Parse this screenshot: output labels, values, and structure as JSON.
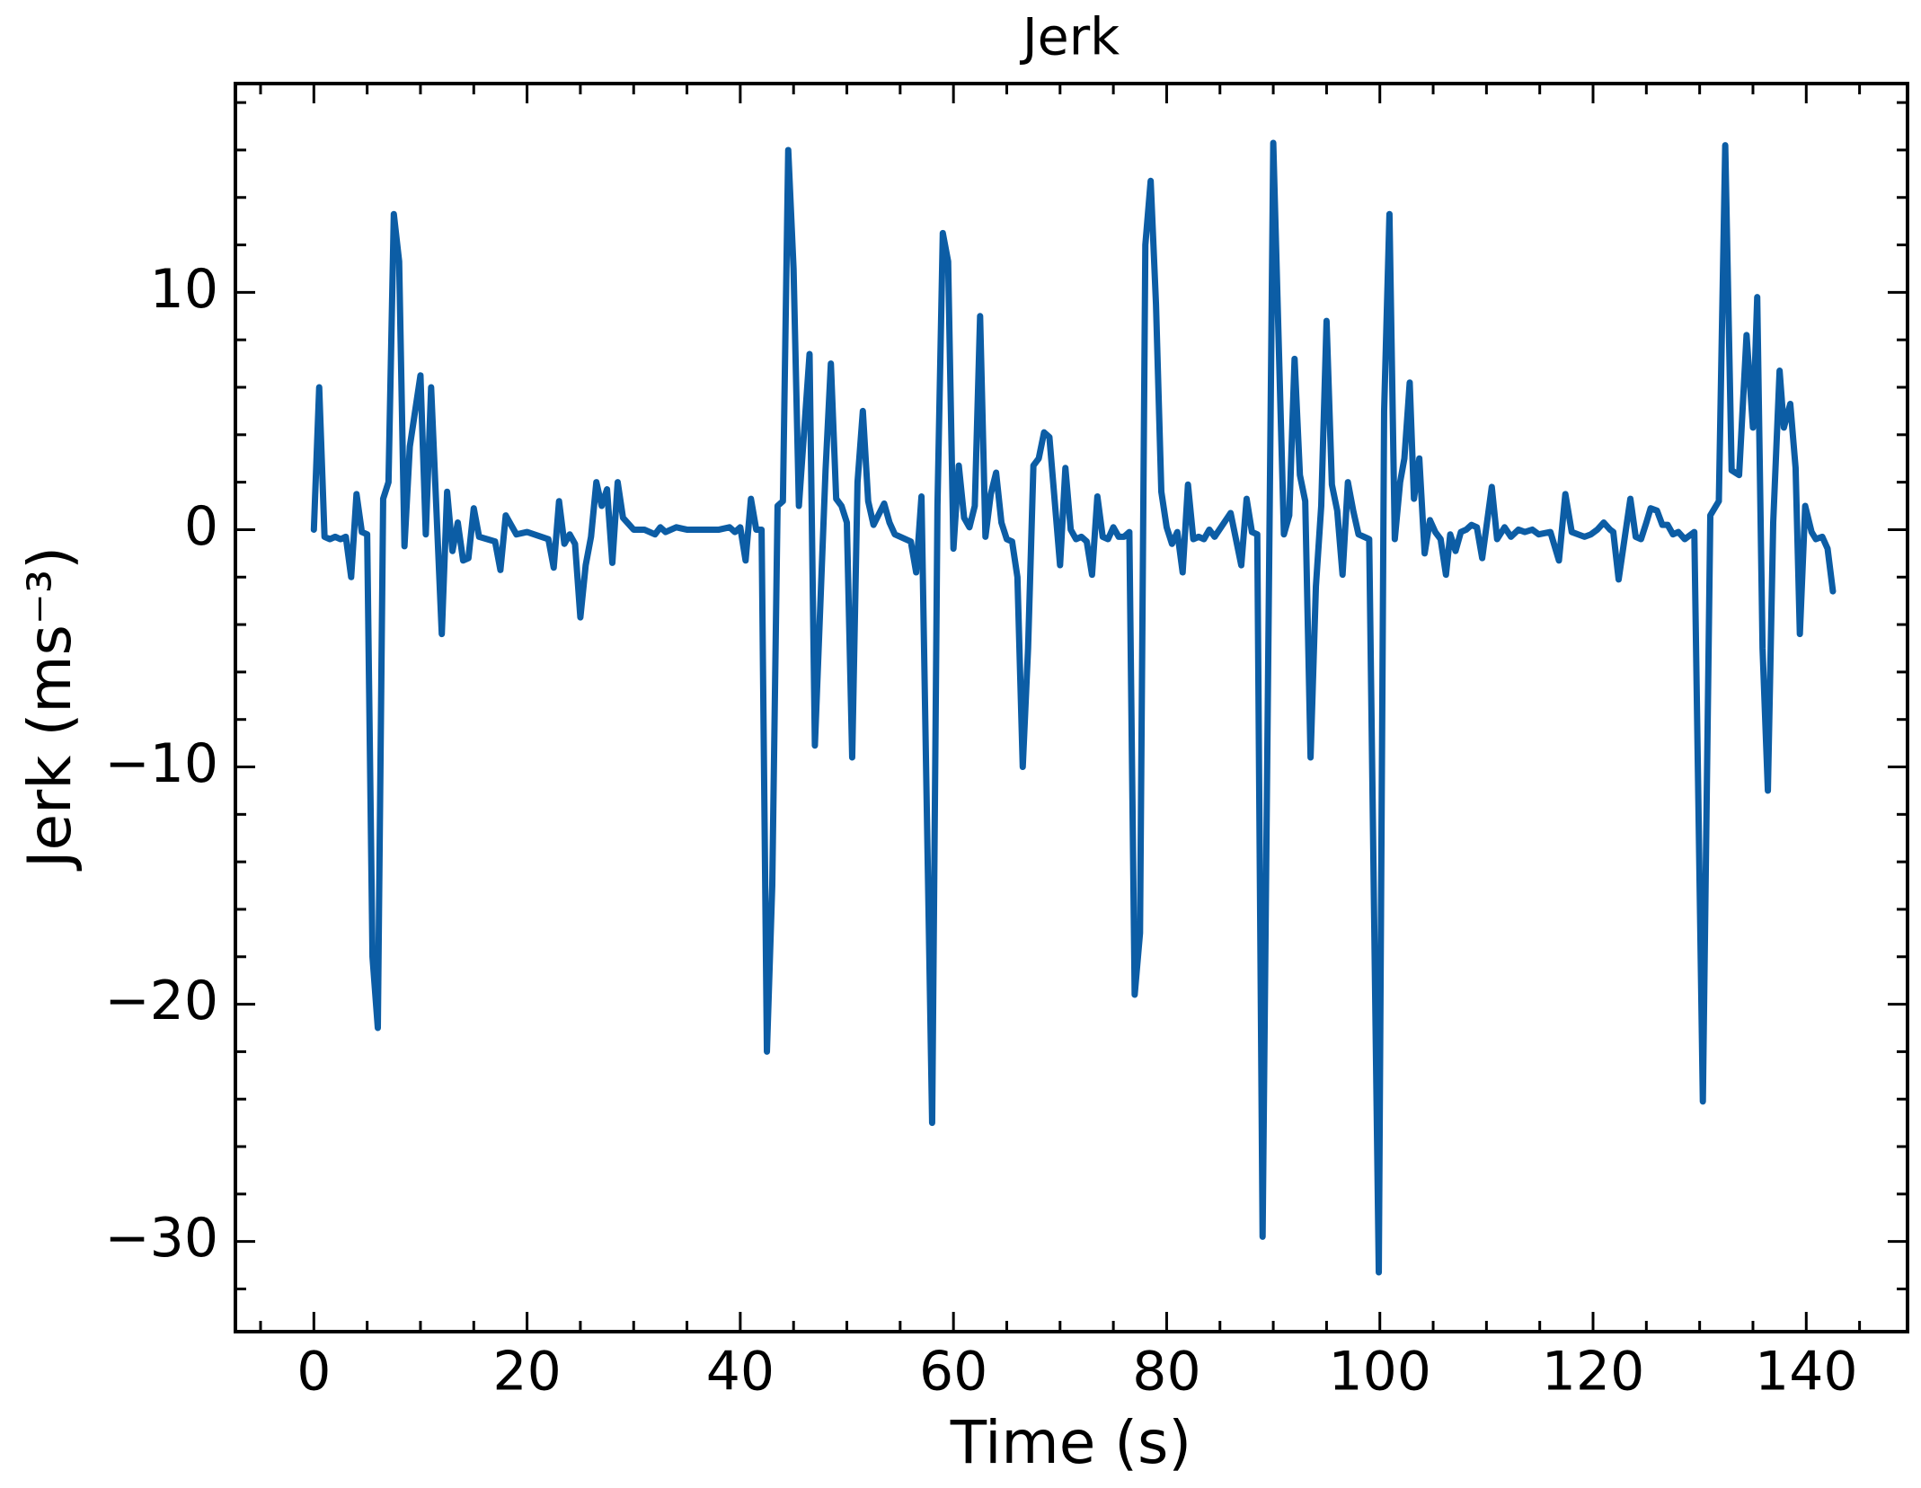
{
  "chart_data": {
    "type": "line",
    "title": "Jerk",
    "x_label": "Time (s)",
    "y_label": "Jerk (ms⁻³)",
    "series": [
      {
        "name": "Jerk",
        "color": "#0c5da5",
        "x": [
          0,
          0.5,
          1,
          1.5,
          2,
          2.5,
          3,
          3.5,
          4,
          4.5,
          5,
          5.5,
          6,
          6.5,
          7,
          7.5,
          8,
          8.5,
          9,
          10,
          10.5,
          11,
          12,
          12.5,
          13,
          13.5,
          14,
          14.5,
          15,
          15.5,
          17,
          17.5,
          18,
          19,
          20,
          22,
          22.5,
          23,
          23.5,
          24,
          24.5,
          25,
          25.5,
          26,
          26.5,
          27,
          27.5,
          28,
          28.5,
          29,
          30,
          31,
          32,
          32.5,
          33,
          34,
          35,
          36,
          37,
          38,
          39,
          39.5,
          40,
          40.5,
          41,
          41.5,
          42,
          42.5,
          43,
          43.5,
          44,
          44.5,
          45,
          45.5,
          46.5,
          47,
          48,
          48.5,
          49,
          49.5,
          50,
          50.5,
          51,
          51.5,
          52,
          52.5,
          53.5,
          54,
          54.5,
          56,
          56.5,
          57,
          58,
          58.5,
          59,
          59.5,
          60,
          60.5,
          61,
          61.5,
          62,
          62.5,
          63,
          63.5,
          64,
          64.5,
          65,
          65.5,
          66,
          66.5,
          67,
          67.5,
          68,
          68.5,
          69,
          70,
          70.5,
          71,
          71.5,
          72,
          72.5,
          73,
          73.5,
          74,
          74.5,
          75,
          75.5,
          76,
          76.5,
          77,
          77.5,
          78,
          78.5,
          79,
          79.5,
          80,
          80.5,
          81,
          81.5,
          82,
          82.5,
          83,
          83.5,
          84,
          84.5,
          86,
          87,
          87.5,
          88,
          88.5,
          89,
          90,
          91,
          91.5,
          92,
          92.5,
          93,
          93.5,
          94,
          94.5,
          95,
          95.5,
          96,
          96.5,
          97,
          97.5,
          98,
          99,
          99.9,
          100.4,
          100.9,
          101.4,
          101.9,
          102.3,
          102.8,
          103.2,
          103.7,
          104.2,
          104.7,
          105.2,
          105.7,
          106.2,
          106.6,
          107.1,
          107.6,
          108.1,
          108.6,
          109.1,
          109.6,
          110.5,
          111,
          111.7,
          112.3,
          113,
          113.6,
          114.3,
          114.9,
          116,
          116.8,
          117.4,
          118,
          118.6,
          119.2,
          119.8,
          120.4,
          121,
          121.6,
          121.9,
          122.4,
          123.5,
          124,
          124.5,
          125,
          125.4,
          126,
          126.5,
          127,
          127.5,
          128,
          128.6,
          129.5,
          130.3,
          131,
          131.8,
          132.4,
          133,
          133.7,
          134.4,
          135,
          135.4,
          135.9,
          136.4,
          136.9,
          137.5,
          137.9,
          138.5,
          139,
          139.4,
          139.9,
          140.5,
          140.9,
          141.5,
          142,
          142.5
        ],
        "values": [
          0,
          6,
          -0.3,
          -0.4,
          -0.3,
          -0.4,
          -0.3,
          -2,
          1.5,
          -0.1,
          -0.2,
          -18,
          -21,
          1.3,
          2,
          13.3,
          11.3,
          -0.7,
          3.5,
          6.5,
          -0.2,
          6,
          -4.4,
          1.6,
          -0.9,
          0.3,
          -1.3,
          -1.2,
          0.9,
          -0.3,
          -0.5,
          -1.7,
          0.6,
          -0.2,
          -0.1,
          -0.4,
          -1.6,
          1.2,
          -0.6,
          -0.2,
          -0.6,
          -3.7,
          -1.5,
          -0.3,
          2,
          1,
          1.7,
          -1.4,
          2,
          0.5,
          0,
          0,
          -0.2,
          0.1,
          -0.1,
          0.1,
          0,
          0,
          0,
          0,
          0.1,
          -0.1,
          0.1,
          -1.3,
          1.3,
          0,
          0,
          -22,
          -15,
          1,
          1.2,
          16,
          11,
          1,
          7.4,
          -9.1,
          2.5,
          7,
          1.3,
          1,
          0.3,
          -9.6,
          2,
          5,
          1.2,
          0.2,
          1.1,
          0.3,
          -0.2,
          -0.5,
          -1.8,
          1.4,
          -25,
          1,
          12.5,
          11.3,
          -0.8,
          2.7,
          0.5,
          0.1,
          1,
          9,
          -0.3,
          1.5,
          2.4,
          0.3,
          -0.4,
          -0.5,
          -2,
          -10,
          -5,
          2.7,
          3,
          4.1,
          3.9,
          -1.5,
          2.6,
          0,
          -0.4,
          -0.3,
          -0.5,
          -1.9,
          1.4,
          -0.3,
          -0.4,
          0.1,
          -0.3,
          -0.3,
          -0.1,
          -19.6,
          -17,
          12,
          14.7,
          9.5,
          1.6,
          0.1,
          -0.6,
          -0.1,
          -1.8,
          1.9,
          -0.4,
          -0.3,
          -0.4,
          0,
          -0.3,
          0.7,
          -1.5,
          1.3,
          -0.1,
          -0.2,
          -29.8,
          16.3,
          -0.2,
          0.6,
          7.2,
          2.3,
          1.2,
          -9.6,
          -2.4,
          1,
          8.8,
          1.9,
          0.8,
          -1.9,
          2,
          0.8,
          -0.2,
          -0.4,
          -31.3,
          5,
          13.3,
          -0.4,
          2,
          3,
          6.2,
          1.3,
          3,
          -1,
          0.4,
          -0.1,
          -0.4,
          -1.9,
          -0.2,
          -0.9,
          -0.1,
          0,
          0.2,
          0.1,
          -1.2,
          1.8,
          -0.4,
          0.1,
          -0.3,
          0,
          -0.1,
          0,
          -0.2,
          -0.1,
          -1.3,
          1.5,
          -0.1,
          -0.2,
          -0.3,
          -0.2,
          0,
          0.3,
          0,
          -0.1,
          -2.1,
          1.3,
          -0.3,
          -0.4,
          0.3,
          0.9,
          0.8,
          0.2,
          0.2,
          -0.2,
          -0.1,
          -0.4,
          -0.1,
          -24.1,
          0.6,
          1.2,
          16.2,
          2.5,
          2.3,
          8.2,
          4.3,
          9.8,
          -5,
          -11,
          0.3,
          6.7,
          4.3,
          5.3,
          2.6,
          -4.4,
          1,
          -0.1,
          -0.4,
          -0.3,
          -0.8,
          -2.6
        ]
      }
    ],
    "xlim": [
      -7.36,
      149.5
    ],
    "ylim": [
      -33.8,
      18.8
    ],
    "xticks": [
      0,
      20,
      40,
      60,
      80,
      100,
      120,
      140
    ],
    "yticks": [
      {
        "value": -30,
        "label": "−30"
      },
      {
        "value": -20,
        "label": "−20"
      },
      {
        "value": -10,
        "label": "−10"
      },
      0,
      10
    ],
    "xminorticks": [
      -5,
      5,
      10,
      15,
      25,
      30,
      35,
      45,
      50,
      55,
      65,
      70,
      75,
      85,
      90,
      95,
      105,
      110,
      115,
      125,
      130,
      135,
      145
    ],
    "yminorticks": [
      -32,
      -28,
      -26,
      -24,
      -22,
      -18,
      -16,
      -14,
      -12,
      -8,
      -6,
      -4,
      -2,
      2,
      4,
      6,
      8,
      12,
      14,
      16,
      18
    ],
    "grid": false
  }
}
